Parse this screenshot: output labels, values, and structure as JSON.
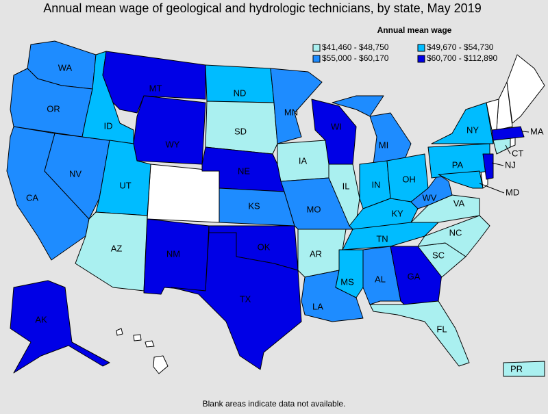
{
  "title": "Annual mean wage of geological and hydrologic technicians, by state, May 2019",
  "legend": {
    "title": "Annual mean wage",
    "items": [
      {
        "label": "$41,460 - $48,750",
        "color": "#aaf0f0"
      },
      {
        "label": "$49,670 - $54,730",
        "color": "#00bcff"
      },
      {
        "label": "$55,000 - $60,170",
        "color": "#1e8cff"
      },
      {
        "label": "$60,700 - $112,890",
        "color": "#0000e6"
      }
    ]
  },
  "states": [
    {
      "label": "WA",
      "legend_item": 2
    },
    {
      "label": "OR",
      "legend_item": 2
    },
    {
      "label": "CA",
      "legend_item": 2
    },
    {
      "label": "NV",
      "legend_item": 2
    },
    {
      "label": "ID",
      "legend_item": 1
    },
    {
      "label": "MT",
      "legend_item": 3
    },
    {
      "label": "WY",
      "legend_item": 3
    },
    {
      "label": "UT",
      "legend_item": 1
    },
    {
      "label": "AZ",
      "legend_item": 0
    },
    {
      "label": "NM",
      "legend_item": 3
    },
    {
      "label": "ND",
      "legend_item": 1
    },
    {
      "label": "SD",
      "legend_item": 0
    },
    {
      "label": "NE",
      "legend_item": 3
    },
    {
      "label": "KS",
      "legend_item": 2
    },
    {
      "label": "OK",
      "legend_item": 3
    },
    {
      "label": "TX",
      "legend_item": 3
    },
    {
      "label": "MN",
      "legend_item": 2
    },
    {
      "label": "IA",
      "legend_item": 0
    },
    {
      "label": "MO",
      "legend_item": 2
    },
    {
      "label": "AR",
      "legend_item": 0
    },
    {
      "label": "LA",
      "legend_item": 2
    },
    {
      "label": "WI",
      "legend_item": 3
    },
    {
      "label": "IL",
      "legend_item": 0
    },
    {
      "label": "MI",
      "legend_item": 2
    },
    {
      "label": "IN",
      "legend_item": 1
    },
    {
      "label": "OH",
      "legend_item": 1
    },
    {
      "label": "KY",
      "legend_item": 1
    },
    {
      "label": "TN",
      "legend_item": 1
    },
    {
      "label": "MS",
      "legend_item": 1
    },
    {
      "label": "AL",
      "legend_item": 2
    },
    {
      "label": "GA",
      "legend_item": 3
    },
    {
      "label": "FL",
      "legend_item": 0
    },
    {
      "label": "SC",
      "legend_item": 0
    },
    {
      "label": "NC",
      "legend_item": 0
    },
    {
      "label": "VA",
      "legend_item": 0
    },
    {
      "label": "WV",
      "legend_item": 2
    },
    {
      "label": "PA",
      "legend_item": 1
    },
    {
      "label": "NY",
      "legend_item": 1
    },
    {
      "label": "MD",
      "legend_item": 1
    },
    {
      "label": "NJ",
      "legend_item": 3
    },
    {
      "label": "CT",
      "legend_item": 0
    },
    {
      "label": "MA",
      "legend_item": 3
    },
    {
      "label": "AK",
      "legend_item": 3
    },
    {
      "label": "PR",
      "legend_item": 0
    }
  ],
  "footnote": "Blank areas indicate data not available."
}
